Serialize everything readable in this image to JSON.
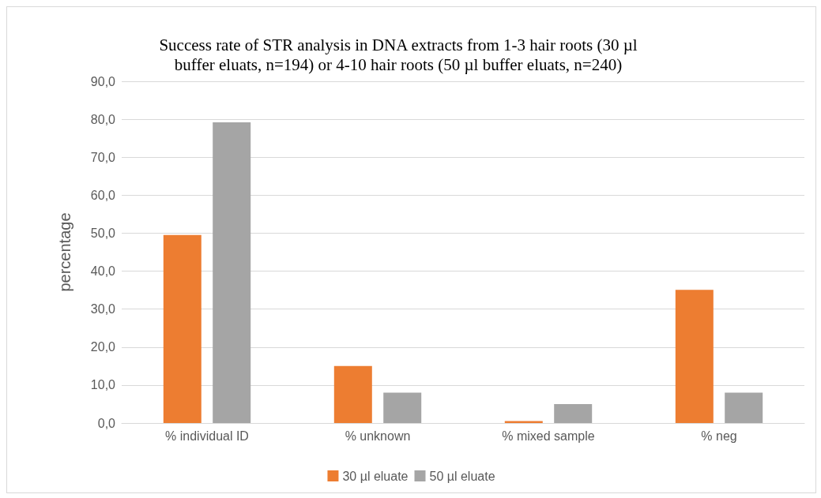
{
  "chart_data": {
    "type": "bar",
    "title": "Success rate of STR analysis in DNA extracts from 1-3 hair roots (30 µl\nbuffer eluats, n=194) or 4-10 hair roots (50 µl buffer eluats, n=240)",
    "ylabel": "percentage",
    "categories": [
      "% individual ID",
      "% unknown",
      "% mixed sample",
      "% neg"
    ],
    "series": [
      {
        "name": "30 µl eluate",
        "color": "#ed7d31",
        "values": [
          49.5,
          15.0,
          0.5,
          35.1
        ]
      },
      {
        "name": "50 µl eluate",
        "color": "#a5a5a5",
        "values": [
          79.2,
          8.0,
          5.0,
          8.0
        ]
      }
    ],
    "ylim": [
      0,
      90
    ],
    "yticks": [
      {
        "value": 0,
        "label": "0,0"
      },
      {
        "value": 10,
        "label": "10,0"
      },
      {
        "value": 20,
        "label": "20,0"
      },
      {
        "value": 30,
        "label": "30,0"
      },
      {
        "value": 40,
        "label": "40,0"
      },
      {
        "value": 50,
        "label": "50,0"
      },
      {
        "value": 60,
        "label": "60,0"
      },
      {
        "value": 70,
        "label": "70,0"
      },
      {
        "value": 80,
        "label": "80,0"
      },
      {
        "value": 90,
        "label": "90,0"
      }
    ],
    "grid": "y",
    "legend": "bottom"
  }
}
